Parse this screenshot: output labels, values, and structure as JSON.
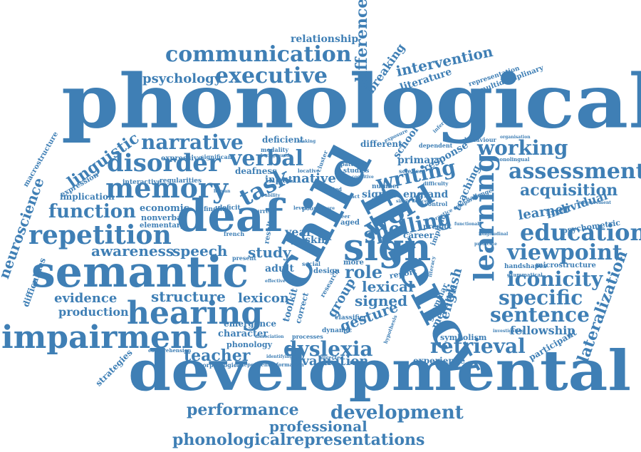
{
  "cloud": {
    "color": "#3f7fb5",
    "words": {
      "phonological": "phonological",
      "developmental": "developmental",
      "semantic": "semantic",
      "impairment": "impairment",
      "hearing": "hearing",
      "fluency": "fluency",
      "child": "child",
      "deaf": "deaf",
      "sign": "sign",
      "memory": "memory",
      "disorder": "disorder",
      "repetition": "repetition",
      "communication": "communication",
      "executive": "executive",
      "narrative": "narrative",
      "verbal": "verbal",
      "task": "task",
      "function": "function",
      "learning": "learning",
      "word": "word",
      "spelling": "spelling",
      "writing": "writing",
      "assessment": "assessment",
      "education": "education",
      "viewpoint": "viewpoint",
      "working": "working",
      "iconicity": "iconicity",
      "specific": "specific",
      "sentence": "sentence",
      "retrieval": "retrieval",
      "dyslexia": "dyslexia",
      "performance": "performance",
      "development": "development",
      "professional": "professional",
      "phonologicalrepresentations": "phonologicalrepresentations",
      "intervention": "intervention",
      "difference": "difference",
      "linguistic": "linguistic",
      "neuroscience": "neuroscience",
      "lateralization": "lateralization",
      "awareness": "awareness",
      "speech": "speech",
      "structure": "structure",
      "evidence": "evidence",
      "production": "production",
      "lexicon": "lexicon",
      "teacher": "teacher",
      "evaluation": "evaluation",
      "lexical": "lexical",
      "signed": "signed",
      "gesture": "gesture",
      "role": "role",
      "study": "study",
      "fellowship": "fellowship",
      "acquisition": "acquisition",
      "learner": "learner",
      "individual": "individual",
      "relationship": "relationship",
      "psychology": "psychology",
      "breaking": "breaking",
      "literature": "literature",
      "economic": "economic",
      "implication": "implication",
      "expressive": "expressive",
      "group": "group",
      "english": "english",
      "experience": "experience",
      "psychometric": "psychometric",
      "microstructure": "microstructure",
      "macrostructure": "macrostructure",
      "difficulties": "difficulties",
      "strategies": "strategies",
      "comprehension": "comprehension",
      "character": "character",
      "phonology": "phonology",
      "emergence": "emergence",
      "adult": "adult",
      "year": "year",
      "skill": "skill",
      "signer": "signer",
      "native": "native",
      "deafness": "deafness",
      "deficient": "deficient",
      "different": "different",
      "school": "school",
      "primary": "primary",
      "response": "response",
      "teaching": "teaching",
      "england": "england",
      "career": "career",
      "report": "report",
      "measure": "measure",
      "grammar": "grammar",
      "handshapes": "handshapes",
      "grammatical": "grammatical",
      "participant": "participant",
      "symbolism": "symbolism",
      "representation": "representation",
      "multidisciplinary": "multidisciplinary",
      "nonverbal": "nonverbal",
      "elementary": "elementary",
      "interactive": "interactive",
      "regularities": "regularities",
      "expression": "expression",
      "input": "input",
      "dynamic": "dynamic",
      "classifier": "classifier",
      "processes": "processes",
      "research": "research",
      "design": "design",
      "social": "social",
      "morphological": "morphological",
      "independent": "independent",
      "information": "information",
      "directed": "directed",
      "sensory": "sensory",
      "correct": "correct",
      "toolkit": "toolkit",
      "finding": "finding",
      "deficit": "deficit",
      "current": "current",
      "present": "present",
      "french": "french",
      "result": "result",
      "pattern": "pattern",
      "studies": "studies",
      "number": "number",
      "aged": "aged",
      "more": "more",
      "predict": "predict",
      "control": "control",
      "literacy": "literacy",
      "challenge": "challenge",
      "dependent": "dependent",
      "behaviour": "behaviour",
      "organisation": "organisation",
      "monolingual": "monolingual",
      "implicit": "implicit",
      "exposure": "exposure",
      "inference": "inference",
      "modality": "modality",
      "significant": "significant",
      "locative": "locative",
      "related": "related",
      "impact": "impact",
      "text": "text",
      "talk": "talk",
      "poor": "poor",
      "measurement": "measurement",
      "science": "science",
      "practice comparison": "practice comparison",
      "difficulty": "difficulty",
      "level": "level",
      "making": "making",
      "human": "human",
      "cluster": "cluster",
      "ability": "ability",
      "background": "background",
      "single device": "single device",
      "investigating": "investigating",
      "dissociation": "dissociation",
      "identifying": "identifying",
      "peer": "peer",
      "hypothesis": "hypothesis",
      "score": "score",
      "cognitive": "cognitive",
      "effective": "effective",
      "component": "component",
      "longitudinal": "longitudinal",
      "functional": "functional",
      "predicate": "predicate"
    }
  }
}
